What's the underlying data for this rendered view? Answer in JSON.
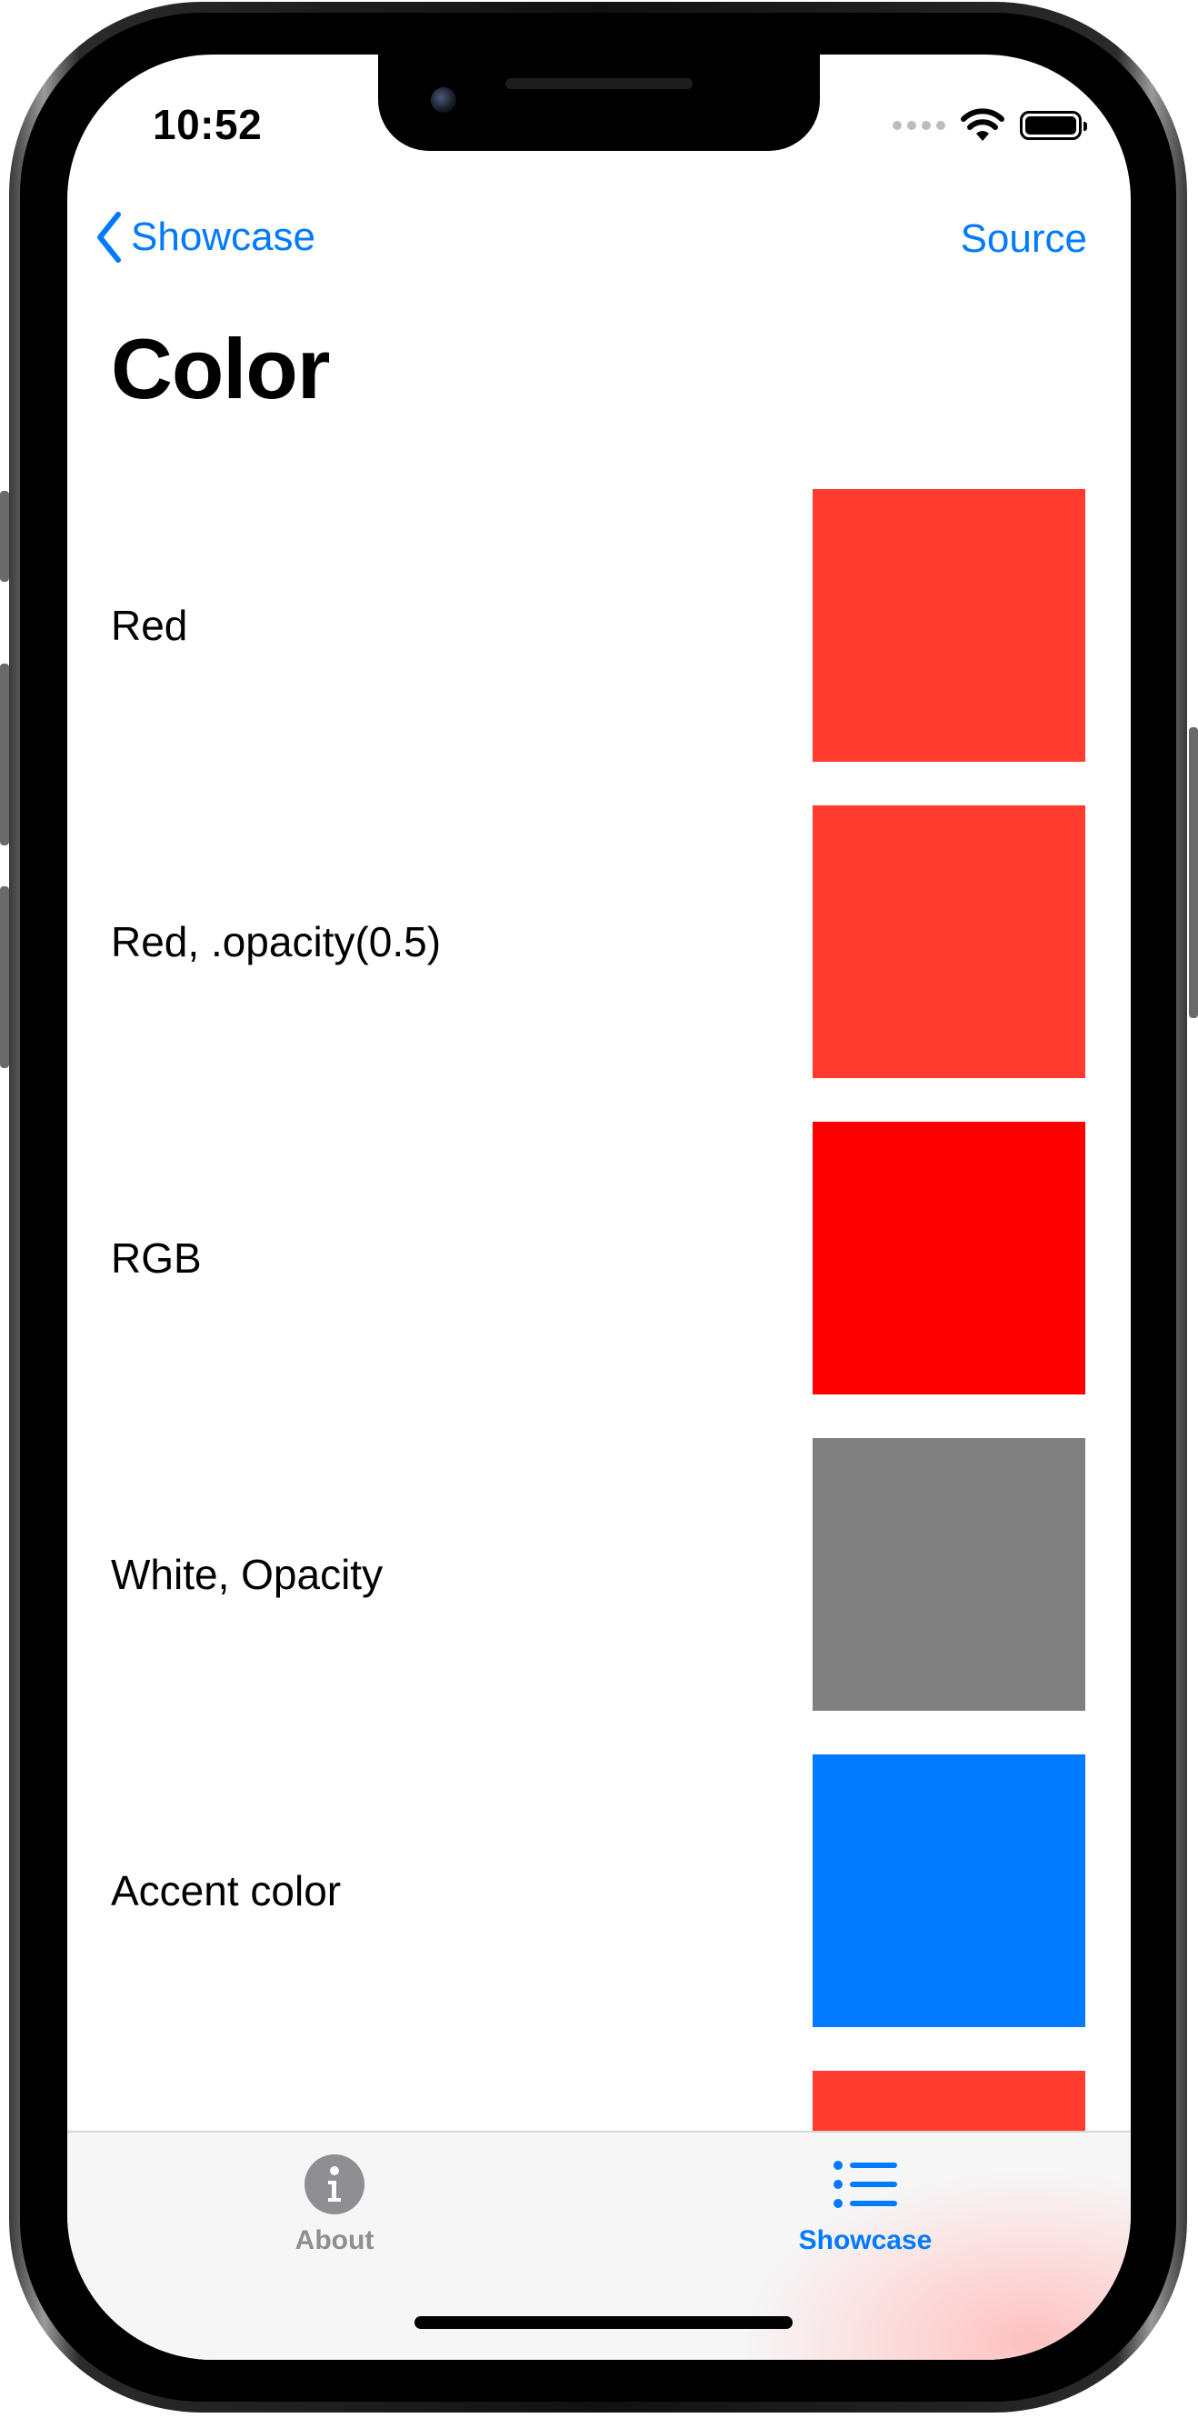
{
  "status_bar": {
    "time": "10:52"
  },
  "nav": {
    "back_label": "Showcase",
    "source_label": "Source"
  },
  "page": {
    "title": "Color"
  },
  "rows": [
    {
      "label": "Red",
      "color": "#ff3b30"
    },
    {
      "label": "Red, .opacity(0.5)",
      "color": "#ff3b30"
    },
    {
      "label": "RGB",
      "color": "#ff0000"
    },
    {
      "label": "White, Opacity",
      "color": "#808080"
    },
    {
      "label": "Accent color",
      "color": "#007aff"
    },
    {
      "label": "",
      "color": "#ff3b30"
    }
  ],
  "tabs": [
    {
      "label": "About",
      "icon": "info-circle-icon",
      "selected": false,
      "color": "#8e8e93"
    },
    {
      "label": "Showcase",
      "icon": "list-bullet-icon",
      "selected": true,
      "color": "#007aff"
    }
  ],
  "colors": {
    "accent": "#007aff",
    "inactive_tab": "#8e8e93"
  }
}
